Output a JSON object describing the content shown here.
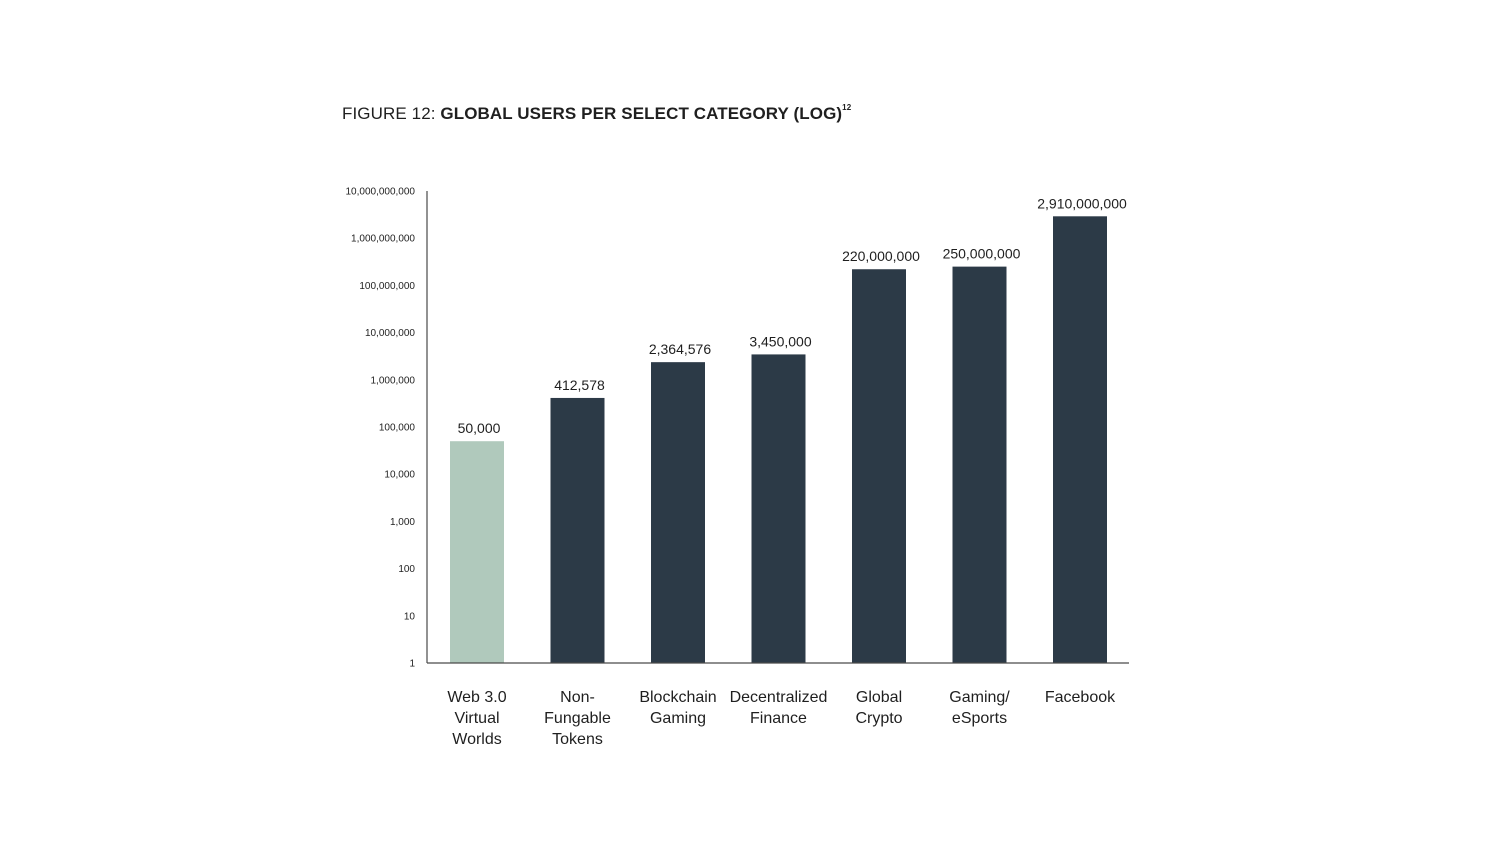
{
  "figure": {
    "prefix": "FIGURE 12: ",
    "title": "GLOBAL USERS PER SELECT CATEGORY (LOG)",
    "superscript": "12"
  },
  "chart_data": {
    "type": "bar",
    "title": "FIGURE 12: GLOBAL USERS PER SELECT CATEGORY (LOG)",
    "log_scale": true,
    "ylim": [
      1,
      10000000000
    ],
    "grid": false,
    "y_ticks": [
      {
        "value": 1,
        "label": "1"
      },
      {
        "value": 10,
        "label": "10"
      },
      {
        "value": 100,
        "label": "100"
      },
      {
        "value": 1000,
        "label": "1,000"
      },
      {
        "value": 10000,
        "label": "10,000"
      },
      {
        "value": 100000,
        "label": "100,000"
      },
      {
        "value": 1000000,
        "label": "1,000,000"
      },
      {
        "value": 10000000,
        "label": "10,000,000"
      },
      {
        "value": 100000000,
        "label": "100,000,000"
      },
      {
        "value": 1000000000,
        "label": "1,000,000,000"
      },
      {
        "value": 10000000000,
        "label": "10,000,000,000"
      }
    ],
    "bars": [
      {
        "category": [
          "Web 3.0",
          "Virtual",
          "Worlds"
        ],
        "value": 50000,
        "label": "50,000",
        "color": "#b0c9bc"
      },
      {
        "category": [
          "Non-",
          "Fungable",
          "Tokens"
        ],
        "value": 412578,
        "label": "412,578",
        "color": "#2c3a47"
      },
      {
        "category": [
          "Blockchain",
          "Gaming"
        ],
        "value": 2364576,
        "label": "2,364,576",
        "color": "#2c3a47"
      },
      {
        "category": [
          "Decentralized",
          "Finance"
        ],
        "value": 3450000,
        "label": "3,450,000",
        "color": "#2c3a47"
      },
      {
        "category": [
          "Global",
          "Crypto"
        ],
        "value": 220000000,
        "label": "220,000,000",
        "color": "#2c3a47"
      },
      {
        "category": [
          "Gaming/",
          "eSports"
        ],
        "value": 250000000,
        "label": "250,000,000",
        "color": "#2c3a47"
      },
      {
        "category": [
          "Facebook"
        ],
        "value": 2910000000,
        "label": "2,910,000,000",
        "color": "#2c3a47"
      }
    ]
  }
}
